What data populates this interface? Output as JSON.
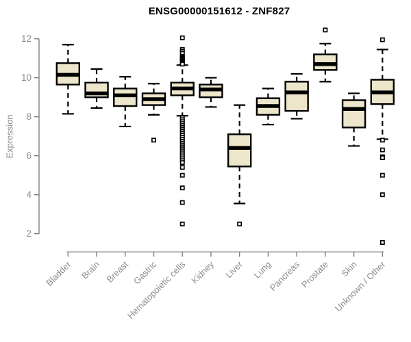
{
  "page": {
    "background": "#ffffff"
  },
  "chart_data": {
    "type": "boxplot",
    "title": "ENSG00000151612 - ZNF827",
    "xlabel": "",
    "ylabel": "Expression",
    "ylim": [
      2,
      12
    ],
    "yticks": [
      2,
      4,
      6,
      8,
      10,
      12
    ],
    "grid": false,
    "legend": null,
    "colors": {
      "box_fill": "#ede6cb",
      "box_border": "#000000",
      "median": "#000000",
      "whisker": "#000000",
      "outlier": "#000000",
      "axis": "#7f7f7f",
      "tick_label": "#8c8c8c",
      "title": "#000000"
    },
    "categories": [
      "Bladder",
      "Brain",
      "Breast",
      "Gastric",
      "Hematopoietic cells",
      "Kidney",
      "Liver",
      "Lung",
      "Pancreas",
      "Prostate",
      "Skin",
      "Unknown / Other"
    ],
    "series": [
      {
        "category": "Bladder",
        "whisker_low": 8.15,
        "q1": 9.65,
        "median": 10.15,
        "q3": 10.75,
        "whisker_high": 11.7,
        "outliers": []
      },
      {
        "category": "Brain",
        "whisker_low": 8.45,
        "q1": 9.0,
        "median": 9.2,
        "q3": 9.75,
        "whisker_high": 10.45,
        "outliers": []
      },
      {
        "category": "Breast",
        "whisker_low": 7.5,
        "q1": 8.55,
        "median": 9.1,
        "q3": 9.45,
        "whisker_high": 10.05,
        "outliers": []
      },
      {
        "category": "Gastric",
        "whisker_low": 8.1,
        "q1": 8.6,
        "median": 8.9,
        "q3": 9.2,
        "whisker_high": 9.7,
        "outliers": [
          6.8
        ]
      },
      {
        "category": "Hematopoietic cells",
        "whisker_low": 8.05,
        "q1": 9.1,
        "median": 9.45,
        "q3": 9.75,
        "whisker_high": 10.65,
        "outliers": [
          12.05,
          11.45,
          11.35,
          11.25,
          11.1,
          11.05,
          11.0,
          10.95,
          10.9,
          10.85,
          10.8,
          10.75,
          10.7,
          7.95,
          7.85,
          7.75,
          7.65,
          7.55,
          7.45,
          7.35,
          7.25,
          7.15,
          7.05,
          6.95,
          6.85,
          6.75,
          6.65,
          6.55,
          6.45,
          6.35,
          6.25,
          6.15,
          6.05,
          5.95,
          5.85,
          5.75,
          5.65,
          5.4,
          5.0,
          4.35,
          3.6,
          2.5
        ]
      },
      {
        "category": "Kidney",
        "whisker_low": 8.5,
        "q1": 9.0,
        "median": 9.4,
        "q3": 9.65,
        "whisker_high": 10.0,
        "outliers": []
      },
      {
        "category": "Liver",
        "whisker_low": 3.55,
        "q1": 5.45,
        "median": 6.4,
        "q3": 7.1,
        "whisker_high": 8.6,
        "outliers": [
          2.5
        ]
      },
      {
        "category": "Lung",
        "whisker_low": 7.6,
        "q1": 8.1,
        "median": 8.55,
        "q3": 8.95,
        "whisker_high": 9.45,
        "outliers": []
      },
      {
        "category": "Pancreas",
        "whisker_low": 7.9,
        "q1": 8.3,
        "median": 9.25,
        "q3": 9.8,
        "whisker_high": 10.2,
        "outliers": []
      },
      {
        "category": "Prostate",
        "whisker_low": 9.8,
        "q1": 10.4,
        "median": 10.7,
        "q3": 11.2,
        "whisker_high": 11.75,
        "outliers": [
          12.45
        ]
      },
      {
        "category": "Skin",
        "whisker_low": 6.5,
        "q1": 7.45,
        "median": 8.4,
        "q3": 8.85,
        "whisker_high": 9.2,
        "outliers": []
      },
      {
        "category": "Unknown / Other",
        "whisker_low": 6.85,
        "q1": 8.65,
        "median": 9.25,
        "q3": 9.9,
        "whisker_high": 11.45,
        "outliers": [
          11.95,
          6.8,
          6.3,
          5.95,
          5.9,
          5.0,
          4.0,
          1.55
        ]
      }
    ]
  }
}
